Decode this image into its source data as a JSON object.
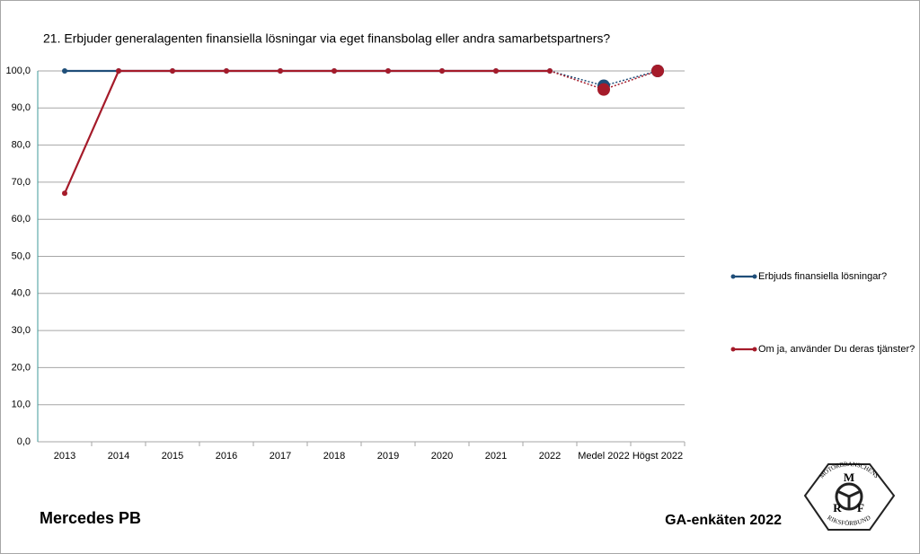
{
  "chart_data": {
    "type": "line",
    "title": "21. Erbjuder generalagenten finansiella lösningar via eget finansbolag eller andra samarbetspartners?",
    "categories": [
      "2013",
      "2014",
      "2015",
      "2016",
      "2017",
      "2018",
      "2019",
      "2020",
      "2021",
      "2022",
      "Medel 2022",
      "Högst 2022"
    ],
    "series": [
      {
        "name": "Erbjuds finansiella lösningar?",
        "color": "#1f4e79",
        "values": [
          100,
          100,
          100,
          100,
          100,
          100,
          100,
          100,
          100,
          100,
          96,
          100
        ]
      },
      {
        "name": "Om ja, använder Du deras tjänster?",
        "color": "#a51b2a",
        "values": [
          67,
          100,
          100,
          100,
          100,
          100,
          100,
          100,
          100,
          100,
          95,
          100
        ]
      }
    ],
    "ylim": [
      0,
      100
    ],
    "yticks": [
      {
        "value": 0,
        "label": "0,0"
      },
      {
        "value": 10,
        "label": "10,0"
      },
      {
        "value": 20,
        "label": "20,0"
      },
      {
        "value": 30,
        "label": "30,0"
      },
      {
        "value": 40,
        "label": "40,0"
      },
      {
        "value": 50,
        "label": "50,0"
      },
      {
        "value": 60,
        "label": "60,0"
      },
      {
        "value": 70,
        "label": "70,0"
      },
      {
        "value": 80,
        "label": "80,0"
      },
      {
        "value": 90,
        "label": "90,0"
      },
      {
        "value": 100,
        "label": "100,0"
      }
    ],
    "grid": true,
    "legend": "right"
  },
  "footer": {
    "left": "Mercedes PB",
    "right": "GA-enkäten 2022"
  },
  "logo": {
    "top": "MOTORBRANSCHENS",
    "bottom": "RIKSFÖRBUND",
    "letters": [
      "M",
      "R",
      "F"
    ]
  }
}
